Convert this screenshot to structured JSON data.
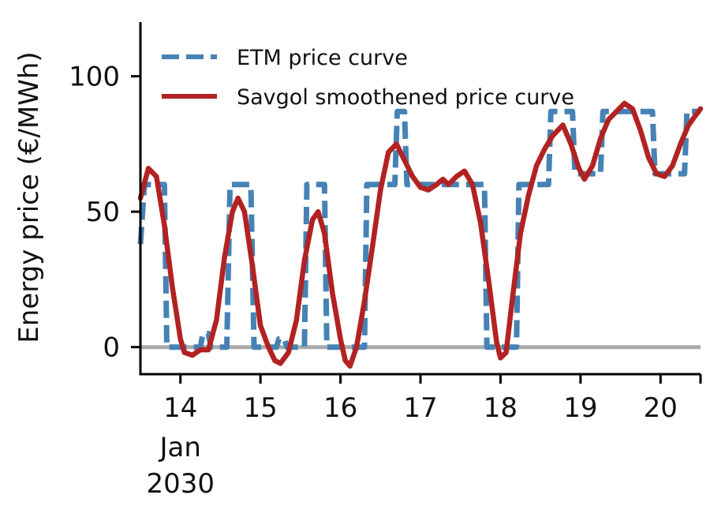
{
  "chart_data": {
    "type": "line",
    "title": "",
    "xlabel": "",
    "ylabel": "Energy price (€/MWh)",
    "x_unit": "day of January 2030",
    "xlim": [
      13.5,
      20.5
    ],
    "ylim": [
      -10,
      120
    ],
    "xticks": [
      {
        "value": 14,
        "label": "14"
      },
      {
        "value": 15,
        "label": "15"
      },
      {
        "value": 16,
        "label": "16"
      },
      {
        "value": 17,
        "label": "17"
      },
      {
        "value": 18,
        "label": "18"
      },
      {
        "value": 19,
        "label": "19"
      },
      {
        "value": 20,
        "label": "20"
      }
    ],
    "xtick_sublabel": {
      "month": "Jan",
      "year": "2030"
    },
    "yticks": [
      {
        "value": 0,
        "label": "0"
      },
      {
        "value": 50,
        "label": "50"
      },
      {
        "value": 100,
        "label": "100"
      }
    ],
    "reference_line": {
      "y": 0,
      "color": "#aaaaaa"
    },
    "grid": false,
    "legend_position": "top-left",
    "series": [
      {
        "name": "ETM price curve",
        "style": "dashed",
        "color": "#4682b4",
        "points": [
          [
            13.5,
            38
          ],
          [
            13.55,
            60
          ],
          [
            13.8,
            60
          ],
          [
            13.83,
            0
          ],
          [
            14.25,
            0
          ],
          [
            14.28,
            5
          ],
          [
            14.35,
            5
          ],
          [
            14.38,
            0
          ],
          [
            14.58,
            0
          ],
          [
            14.62,
            60
          ],
          [
            14.88,
            60
          ],
          [
            14.92,
            0
          ],
          [
            15.2,
            0
          ],
          [
            15.23,
            3
          ],
          [
            15.3,
            3
          ],
          [
            15.33,
            0
          ],
          [
            15.55,
            0
          ],
          [
            15.58,
            60
          ],
          [
            15.8,
            60
          ],
          [
            15.83,
            0
          ],
          [
            16.3,
            0
          ],
          [
            16.33,
            60
          ],
          [
            16.68,
            60
          ],
          [
            16.71,
            87
          ],
          [
            16.8,
            87
          ],
          [
            16.83,
            60
          ],
          [
            17.8,
            60
          ],
          [
            17.83,
            0
          ],
          [
            18.2,
            0
          ],
          [
            18.23,
            60
          ],
          [
            18.6,
            60
          ],
          [
            18.63,
            87
          ],
          [
            18.9,
            87
          ],
          [
            18.93,
            64
          ],
          [
            19.25,
            64
          ],
          [
            19.28,
            87
          ],
          [
            19.9,
            87
          ],
          [
            19.93,
            64
          ],
          [
            20.3,
            64
          ],
          [
            20.33,
            87
          ],
          [
            20.5,
            87
          ]
        ]
      },
      {
        "name": "Savgol smoothened price curve",
        "style": "solid",
        "color": "#b22222",
        "points": [
          [
            13.5,
            55
          ],
          [
            13.6,
            66
          ],
          [
            13.7,
            63
          ],
          [
            13.8,
            45
          ],
          [
            13.9,
            22
          ],
          [
            14.0,
            3
          ],
          [
            14.05,
            -2
          ],
          [
            14.15,
            -3
          ],
          [
            14.25,
            -1
          ],
          [
            14.35,
            -1
          ],
          [
            14.45,
            10
          ],
          [
            14.55,
            33
          ],
          [
            14.65,
            50
          ],
          [
            14.72,
            55
          ],
          [
            14.8,
            50
          ],
          [
            14.9,
            30
          ],
          [
            15.0,
            8
          ],
          [
            15.1,
            0
          ],
          [
            15.18,
            -5
          ],
          [
            15.25,
            -6
          ],
          [
            15.35,
            -2
          ],
          [
            15.45,
            10
          ],
          [
            15.55,
            32
          ],
          [
            15.65,
            47
          ],
          [
            15.72,
            50
          ],
          [
            15.8,
            42
          ],
          [
            15.9,
            20
          ],
          [
            16.0,
            3
          ],
          [
            16.06,
            -5
          ],
          [
            16.12,
            -7
          ],
          [
            16.2,
            0
          ],
          [
            16.3,
            17
          ],
          [
            16.4,
            37
          ],
          [
            16.5,
            58
          ],
          [
            16.6,
            72
          ],
          [
            16.7,
            75
          ],
          [
            16.8,
            69
          ],
          [
            16.9,
            63
          ],
          [
            17.0,
            59
          ],
          [
            17.1,
            58
          ],
          [
            17.2,
            60
          ],
          [
            17.28,
            62
          ],
          [
            17.35,
            60
          ],
          [
            17.45,
            63
          ],
          [
            17.55,
            65
          ],
          [
            17.65,
            60
          ],
          [
            17.75,
            46
          ],
          [
            17.85,
            25
          ],
          [
            17.95,
            2
          ],
          [
            18.0,
            -4
          ],
          [
            18.07,
            -2
          ],
          [
            18.15,
            18
          ],
          [
            18.25,
            42
          ],
          [
            18.35,
            56
          ],
          [
            18.45,
            67
          ],
          [
            18.55,
            73
          ],
          [
            18.65,
            78
          ],
          [
            18.78,
            82
          ],
          [
            18.88,
            75
          ],
          [
            18.98,
            66
          ],
          [
            19.05,
            62
          ],
          [
            19.15,
            67
          ],
          [
            19.25,
            77
          ],
          [
            19.35,
            84
          ],
          [
            19.45,
            87
          ],
          [
            19.55,
            90
          ],
          [
            19.65,
            88
          ],
          [
            19.75,
            80
          ],
          [
            19.85,
            70
          ],
          [
            19.95,
            64
          ],
          [
            20.05,
            63
          ],
          [
            20.15,
            67
          ],
          [
            20.25,
            75
          ],
          [
            20.35,
            82
          ],
          [
            20.45,
            86
          ],
          [
            20.5,
            88
          ]
        ]
      }
    ]
  }
}
